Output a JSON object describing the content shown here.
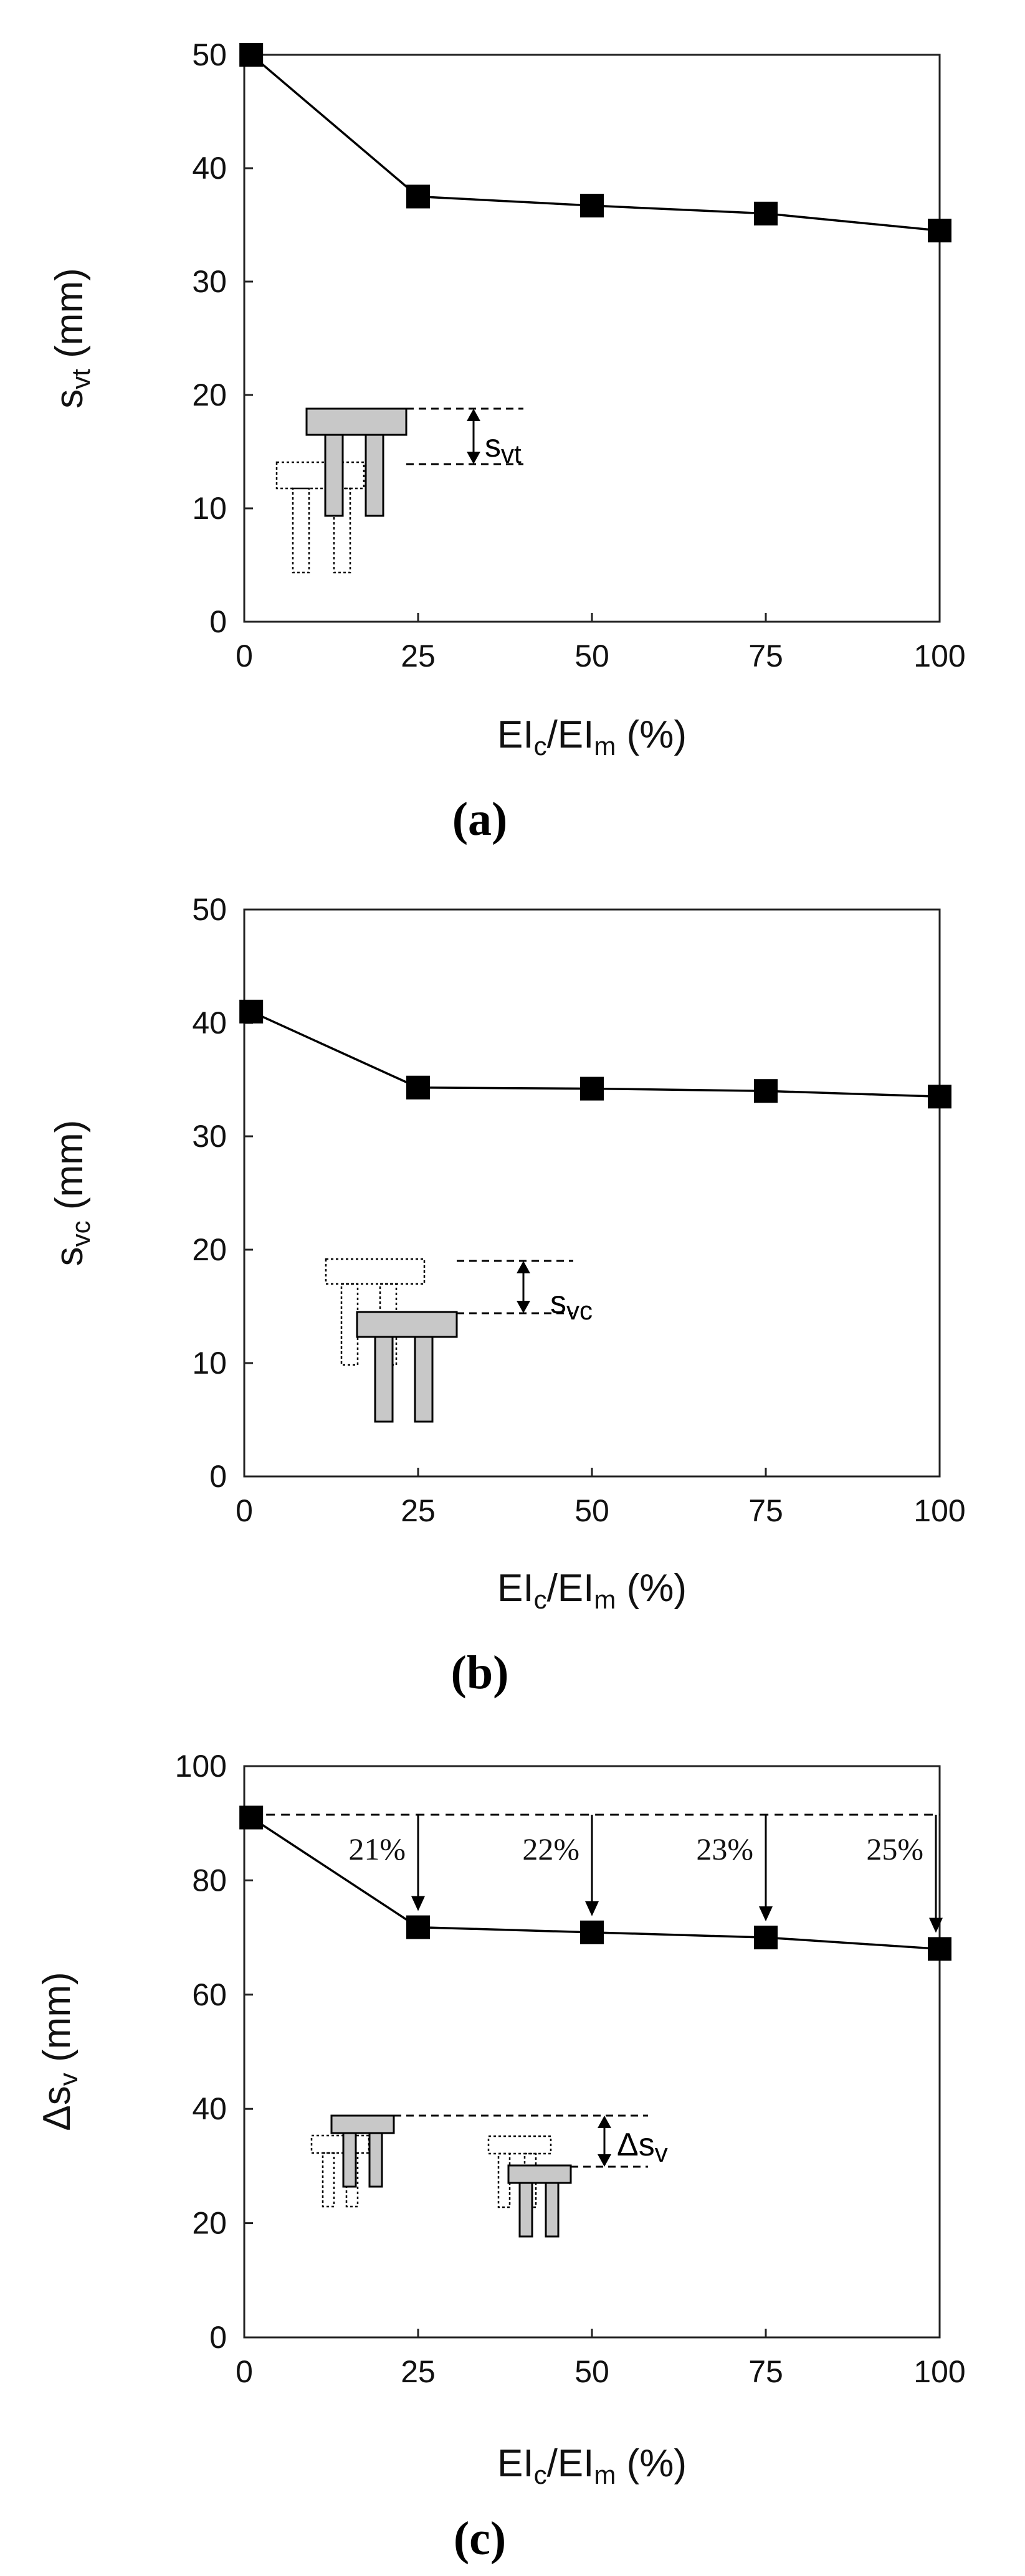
{
  "chart_data": [
    {
      "type": "line",
      "panel_label": "(a)",
      "xlabel": {
        "main": "EI",
        "sub1": "c",
        "mid": "/EI",
        "sub2": "m",
        "tail": " (%)"
      },
      "ylabel": {
        "main": "s",
        "sub": "vt",
        "tail": " (mm)"
      },
      "xlim": [
        0,
        100
      ],
      "ylim": [
        0,
        50
      ],
      "xticks": [
        0,
        25,
        50,
        75,
        100
      ],
      "yticks": [
        0,
        10,
        20,
        30,
        40,
        50
      ],
      "x": [
        1,
        25,
        50,
        75,
        100
      ],
      "values": [
        50,
        37.5,
        36.7,
        36.0,
        34.5
      ],
      "inset": {
        "label_main": "s",
        "label_sub": "vt"
      }
    },
    {
      "type": "line",
      "panel_label": "(b)",
      "xlabel": {
        "main": "EI",
        "sub1": "c",
        "mid": "/EI",
        "sub2": "m",
        "tail": " (%)"
      },
      "ylabel": {
        "main": "s",
        "sub": "vc",
        "tail": " (mm)"
      },
      "xlim": [
        0,
        100
      ],
      "ylim": [
        0,
        50
      ],
      "xticks": [
        0,
        25,
        50,
        75,
        100
      ],
      "yticks": [
        0,
        10,
        20,
        30,
        40,
        50
      ],
      "x": [
        1,
        25,
        50,
        75,
        100
      ],
      "values": [
        41,
        34.3,
        34.2,
        34.0,
        33.5
      ],
      "inset": {
        "label_main": "s",
        "label_sub": "vc"
      }
    },
    {
      "type": "line",
      "panel_label": "(c)",
      "xlabel": {
        "main": "EI",
        "sub1": "c",
        "mid": "/EI",
        "sub2": "m",
        "tail": " (%)"
      },
      "ylabel": {
        "main": "Δs",
        "sub": "v",
        "tail": " (mm)"
      },
      "xlim": [
        0,
        100
      ],
      "ylim": [
        0,
        100
      ],
      "xticks": [
        0,
        25,
        50,
        75,
        100
      ],
      "yticks": [
        0,
        20,
        40,
        60,
        80,
        100
      ],
      "x": [
        1,
        25,
        50,
        75,
        100
      ],
      "values": [
        91,
        71.8,
        70.9,
        70.0,
        68.0
      ],
      "reference_value": 91.5,
      "annotations": [
        {
          "x": 25,
          "text": "21%"
        },
        {
          "x": 50,
          "text": "22%"
        },
        {
          "x": 75,
          "text": "23%"
        },
        {
          "x": 100,
          "text": "25%"
        }
      ],
      "inset": {
        "label_main": "Δs",
        "label_sub": "v"
      }
    }
  ]
}
